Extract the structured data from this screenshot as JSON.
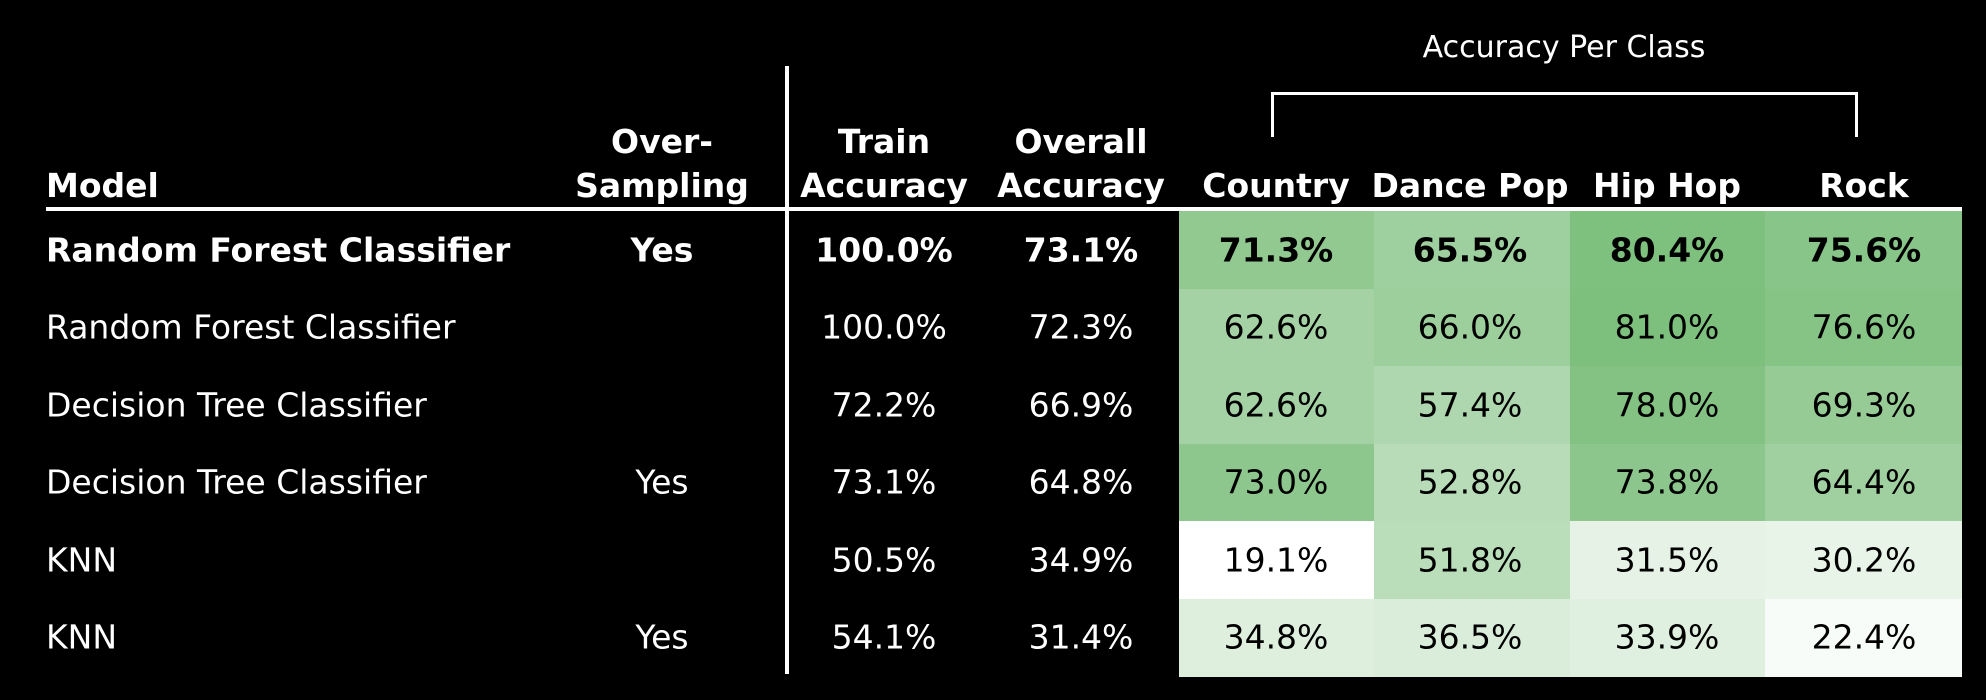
{
  "chart_data": {
    "type": "table",
    "group_label": "Accuracy Per Class",
    "columns": [
      "Model",
      "Over-\nSampling",
      "Train\nAccuracy",
      "Overall\nAccuracy",
      "Country",
      "Dance Pop",
      "Hip Hop",
      "Rock"
    ],
    "rows": [
      {
        "model": "Random Forest Classifier",
        "oversampling": "Yes",
        "train": "100.0%",
        "overall": "73.1%",
        "per_class": [
          "71.3%",
          "65.5%",
          "80.4%",
          "75.6%"
        ],
        "per_class_values": [
          71.3,
          65.5,
          80.4,
          75.6
        ],
        "bold": true
      },
      {
        "model": "Random Forest Classifier",
        "oversampling": "",
        "train": "100.0%",
        "overall": "72.3%",
        "per_class": [
          "62.6%",
          "66.0%",
          "81.0%",
          "76.6%"
        ],
        "per_class_values": [
          62.6,
          66.0,
          81.0,
          76.6
        ],
        "bold": false
      },
      {
        "model": "Decision Tree Classifier",
        "oversampling": "",
        "train": "72.2%",
        "overall": "66.9%",
        "per_class": [
          "62.6%",
          "57.4%",
          "78.0%",
          "69.3%"
        ],
        "per_class_values": [
          62.6,
          57.4,
          78.0,
          69.3
        ],
        "bold": false
      },
      {
        "model": "Decision Tree Classifier",
        "oversampling": "Yes",
        "train": "73.1%",
        "overall": "64.8%",
        "per_class": [
          "73.0%",
          "52.8%",
          "73.8%",
          "64.4%"
        ],
        "per_class_values": [
          73.0,
          52.8,
          73.8,
          64.4
        ],
        "bold": false
      },
      {
        "model": "KNN",
        "oversampling": "",
        "train": "50.5%",
        "overall": "34.9%",
        "per_class": [
          "19.1%",
          "51.8%",
          "31.5%",
          "30.2%"
        ],
        "per_class_values": [
          19.1,
          51.8,
          31.5,
          30.2
        ],
        "bold": false
      },
      {
        "model": "KNN",
        "oversampling": "Yes",
        "train": "54.1%",
        "overall": "31.4%",
        "per_class": [
          "34.8%",
          "36.5%",
          "33.9%",
          "22.4%"
        ],
        "per_class_values": [
          34.8,
          36.5,
          33.9,
          22.4
        ],
        "bold": false
      }
    ],
    "color_scale": {
      "low": "#ffffff",
      "high": "#7dbf7d",
      "min": 19.1,
      "max": 81.0
    }
  }
}
